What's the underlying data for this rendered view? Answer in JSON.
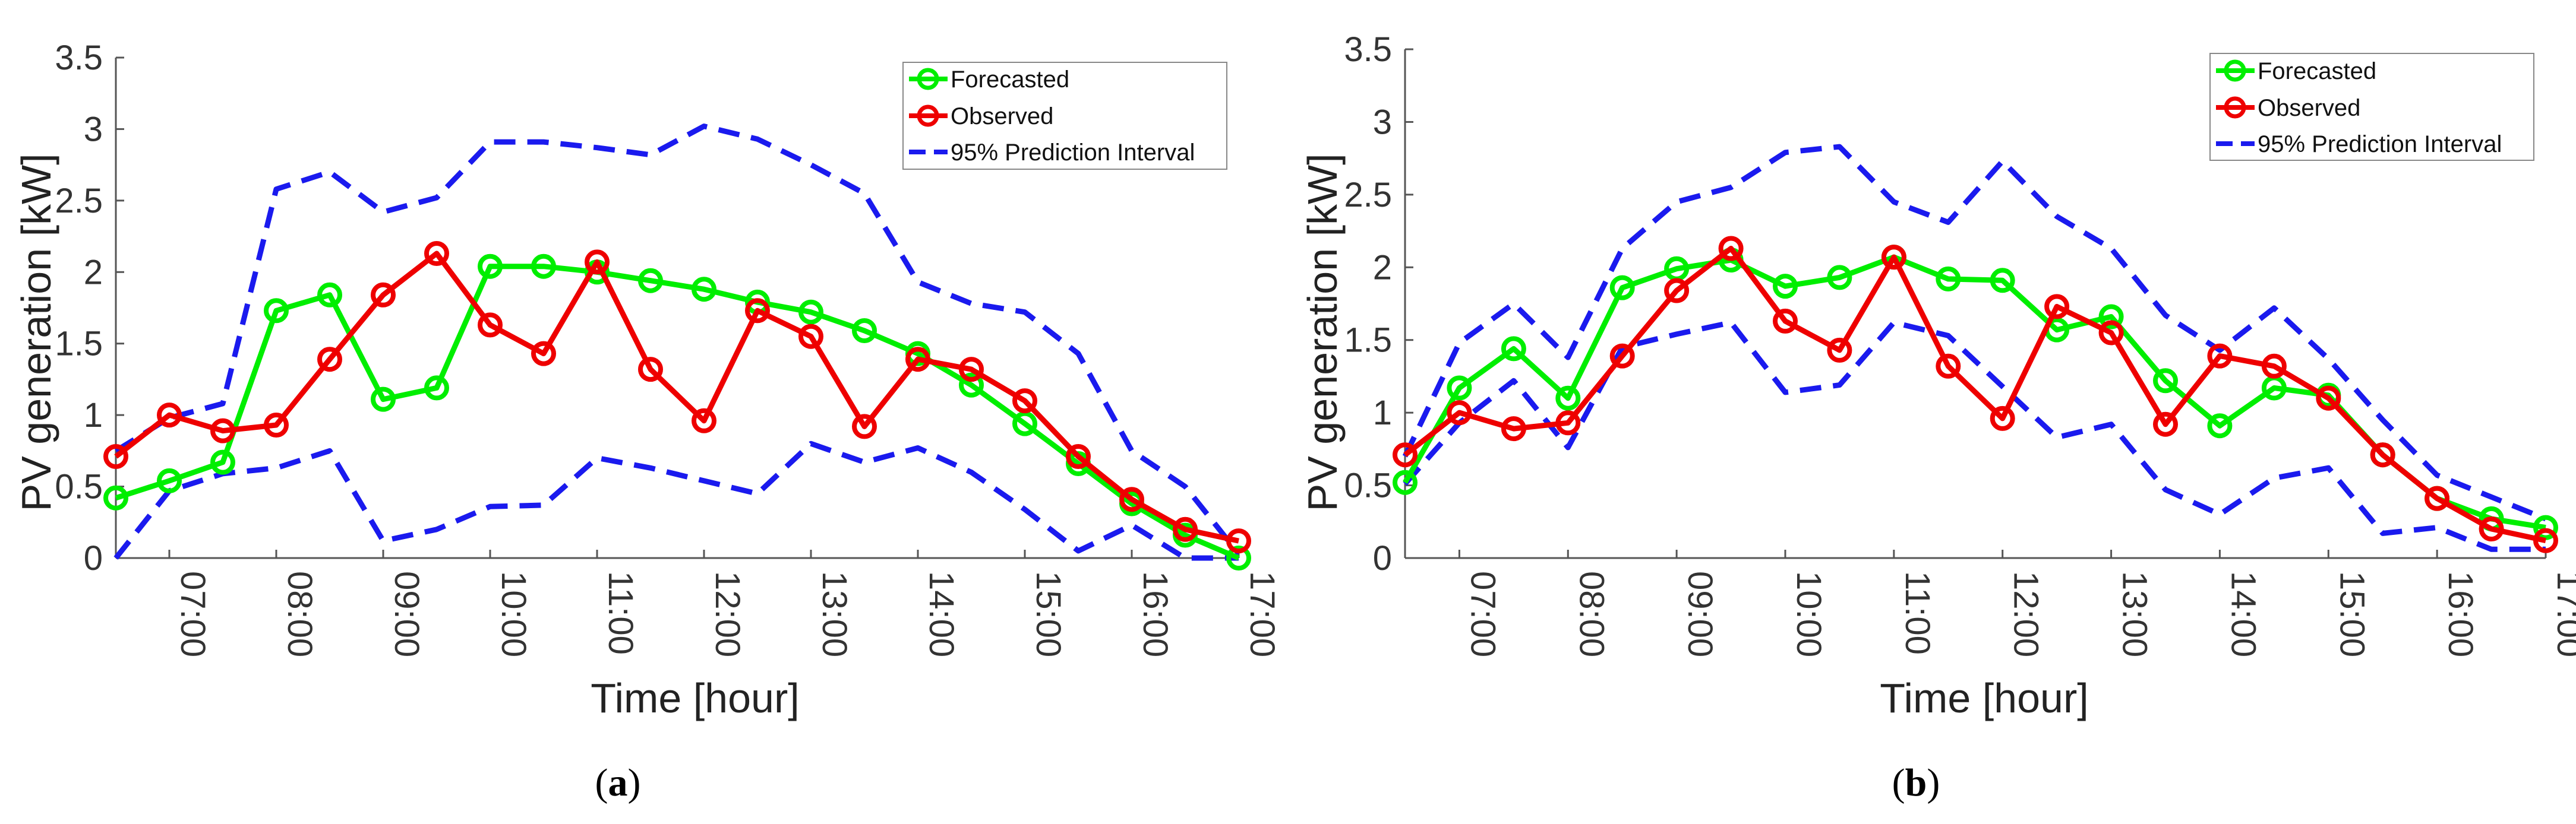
{
  "chart_data": [
    {
      "id": "a",
      "type": "line",
      "caption": {
        "open": "(",
        "letter": "a",
        "close": ")"
      },
      "xlabel": "Time [hour]",
      "ylabel": "PV generation [kW]",
      "ylim": [
        0,
        3.5
      ],
      "xlim": [
        6.5,
        17.0
      ],
      "yticks": [
        "0",
        "0.5",
        "1",
        "1.5",
        "2",
        "2.5",
        "3",
        "3.5"
      ],
      "xticks": [
        "07:00",
        "08:00",
        "09:00",
        "10:00",
        "11:00",
        "12:00",
        "13:00",
        "14:00",
        "15:00",
        "16:00",
        "17:00"
      ],
      "x": [
        6.5,
        7.0,
        7.5,
        8.0,
        8.5,
        9.0,
        9.5,
        10.0,
        10.5,
        11.0,
        11.5,
        12.0,
        12.5,
        13.0,
        13.5,
        14.0,
        14.5,
        15.0,
        15.5,
        16.0,
        16.5,
        17.0
      ],
      "legend": {
        "position": "top-right",
        "entries": [
          "Forecasted",
          "Observed",
          "95% Prediction Interval"
        ]
      },
      "series": [
        {
          "name": "Forecasted",
          "color": "#00ee00",
          "style": "line-circle",
          "values": [
            0.42,
            0.54,
            0.67,
            1.73,
            1.84,
            1.11,
            1.19,
            2.04,
            2.04,
            2.0,
            1.94,
            1.88,
            1.79,
            1.72,
            1.59,
            1.43,
            1.21,
            0.94,
            0.66,
            0.38,
            0.16,
            0.0
          ]
        },
        {
          "name": "Observed",
          "color": "#ee0000",
          "style": "line-circle",
          "values": [
            0.71,
            1.0,
            0.89,
            0.93,
            1.39,
            1.84,
            2.13,
            1.63,
            1.43,
            2.07,
            1.32,
            0.96,
            1.73,
            1.55,
            0.92,
            1.39,
            1.32,
            1.1,
            0.71,
            0.41,
            0.2,
            0.12
          ]
        },
        {
          "name": "95% Prediction Interval (upper)",
          "color": "#1a1aee",
          "style": "dashed",
          "values": [
            0.75,
            0.98,
            1.08,
            2.58,
            2.7,
            2.42,
            2.52,
            2.91,
            2.91,
            2.87,
            2.82,
            3.02,
            2.93,
            2.75,
            2.55,
            1.93,
            1.78,
            1.72,
            1.43,
            0.75,
            0.5,
            0.03
          ]
        },
        {
          "name": "95% Prediction Interval (lower)",
          "color": "#1a1aee",
          "style": "dashed",
          "values": [
            0.0,
            0.47,
            0.59,
            0.63,
            0.75,
            0.12,
            0.2,
            0.36,
            0.37,
            0.7,
            0.63,
            0.54,
            0.45,
            0.8,
            0.67,
            0.77,
            0.6,
            0.34,
            0.05,
            0.23,
            0.0,
            0.0
          ]
        }
      ]
    },
    {
      "id": "b",
      "type": "line",
      "caption": {
        "open": "(",
        "letter": "b",
        "close": ")"
      },
      "xlabel": "Time [hour]",
      "ylabel": "PV generation [kW]",
      "ylim": [
        0,
        3.5
      ],
      "xlim": [
        6.5,
        17.0
      ],
      "yticks": [
        "0",
        "0.5",
        "1",
        "1.5",
        "2",
        "2.5",
        "3",
        "3.5"
      ],
      "xticks": [
        "07:00",
        "08:00",
        "09:00",
        "10:00",
        "11:00",
        "12:00",
        "13:00",
        "14:00",
        "15:00",
        "16:00",
        "17:00"
      ],
      "x": [
        6.5,
        7.0,
        7.5,
        8.0,
        8.5,
        9.0,
        9.5,
        10.0,
        10.5,
        11.0,
        11.5,
        12.0,
        12.5,
        13.0,
        13.5,
        14.0,
        14.5,
        15.0,
        15.5,
        16.0,
        16.5,
        17.0
      ],
      "legend": {
        "position": "top-right",
        "entries": [
          "Forecasted",
          "Observed",
          "95% Prediction Interval"
        ]
      },
      "series": [
        {
          "name": "Forecasted",
          "color": "#00ee00",
          "style": "line-circle",
          "values": [
            0.52,
            1.17,
            1.44,
            1.1,
            1.86,
            1.99,
            2.05,
            1.87,
            1.93,
            2.07,
            1.92,
            1.91,
            1.57,
            1.66,
            1.22,
            0.91,
            1.17,
            1.12,
            0.71,
            0.41,
            0.27,
            0.21
          ]
        },
        {
          "name": "Observed",
          "color": "#ee0000",
          "style": "line-circle",
          "values": [
            0.71,
            1.0,
            0.89,
            0.93,
            1.39,
            1.84,
            2.13,
            1.63,
            1.43,
            2.07,
            1.32,
            0.96,
            1.73,
            1.55,
            0.92,
            1.39,
            1.32,
            1.1,
            0.71,
            0.41,
            0.2,
            0.12
          ]
        },
        {
          "name": "95% Prediction Interval (upper)",
          "color": "#1a1aee",
          "style": "dashed",
          "values": [
            0.7,
            1.48,
            1.75,
            1.38,
            2.13,
            2.45,
            2.55,
            2.79,
            2.83,
            2.45,
            2.31,
            2.73,
            2.35,
            2.13,
            1.67,
            1.43,
            1.72,
            1.37,
            0.95,
            0.57,
            0.42,
            0.27
          ]
        },
        {
          "name": "95% Prediction Interval (lower)",
          "color": "#1a1aee",
          "style": "dashed",
          "values": [
            0.51,
            0.93,
            1.22,
            0.76,
            1.45,
            1.54,
            1.62,
            1.14,
            1.19,
            1.62,
            1.53,
            1.18,
            0.83,
            0.92,
            0.47,
            0.3,
            0.55,
            0.62,
            0.17,
            0.21,
            0.06,
            0.06
          ]
        }
      ]
    }
  ]
}
